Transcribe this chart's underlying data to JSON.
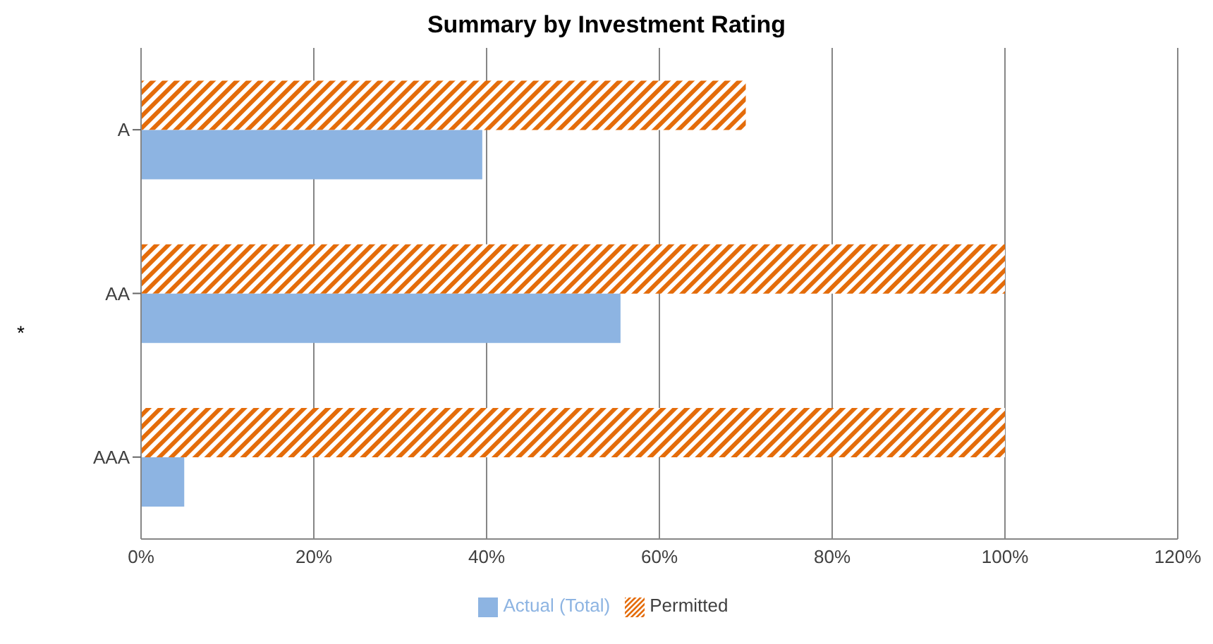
{
  "chart_data": {
    "type": "bar",
    "orientation": "horizontal",
    "title": "Summary by Investment Rating",
    "ylabel": "*",
    "categories": [
      "A",
      "AA",
      "AAA"
    ],
    "series": [
      {
        "name": "Permitted",
        "color": "#e46c0a",
        "values": [
          70,
          100,
          100
        ]
      },
      {
        "name": "Actual (Total)",
        "color": "#8db4e2",
        "values": [
          39.5,
          55.5,
          5
        ]
      }
    ],
    "xlim": [
      0,
      120
    ],
    "xticks": [
      {
        "value": 0,
        "label": "0%"
      },
      {
        "value": 20,
        "label": "20%"
      },
      {
        "value": 40,
        "label": "40%"
      },
      {
        "value": 60,
        "label": "60%"
      },
      {
        "value": 80,
        "label": "80%"
      },
      {
        "value": 100,
        "label": "100%"
      },
      {
        "value": 120,
        "label": "120%"
      }
    ],
    "grid": "x",
    "legend": "bottom"
  }
}
